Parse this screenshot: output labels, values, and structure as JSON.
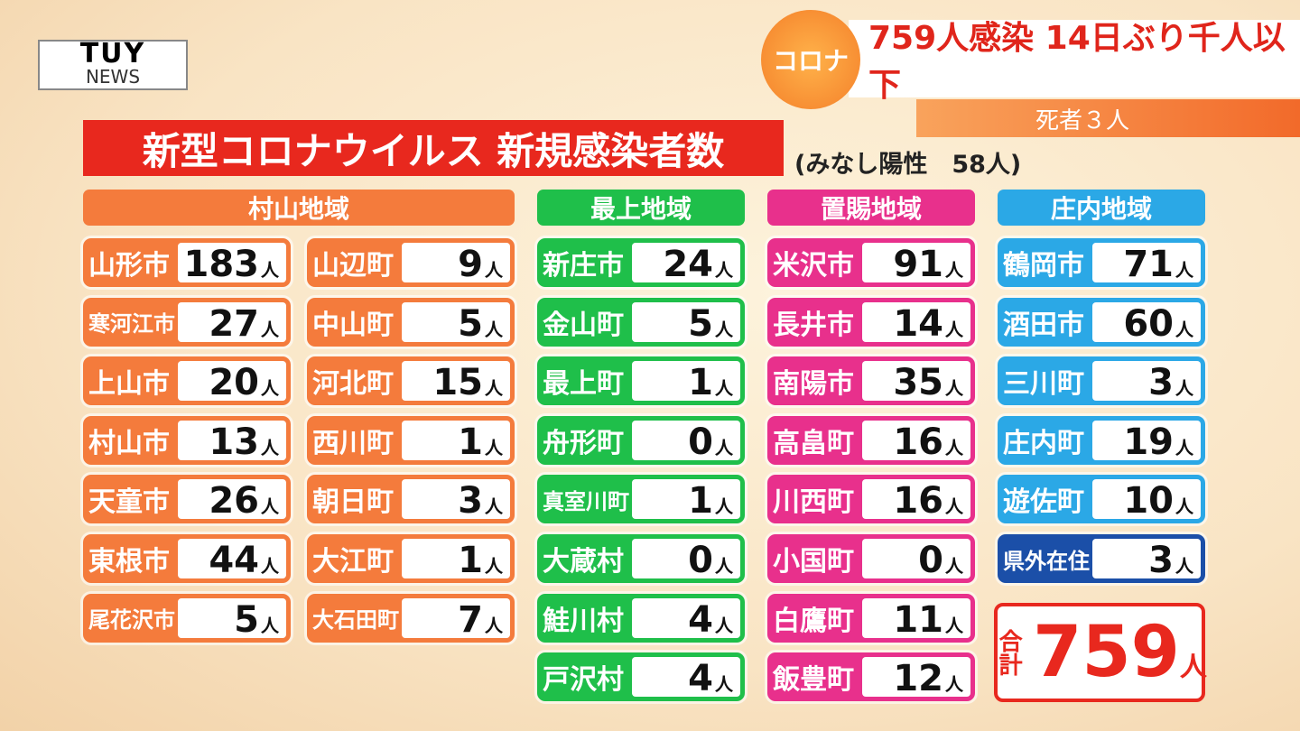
{
  "logo": {
    "main": "TUY",
    "sub": "NEWS"
  },
  "headline": {
    "tag": "コロナ",
    "text": "759人感染 14日ぶり千人以下",
    "sub": "死者３人"
  },
  "title": "新型コロナウイルス 新規感染者数",
  "note": "(みなし陽性　58人)",
  "unit": "人",
  "regions": [
    {
      "name": "村山地域",
      "color": "#f47b3c",
      "columns": [
        [
          {
            "name": "山形市",
            "count": 183
          },
          {
            "name": "寒河江市",
            "count": 27
          },
          {
            "name": "上山市",
            "count": 20
          },
          {
            "name": "村山市",
            "count": 13
          },
          {
            "name": "天童市",
            "count": 26
          },
          {
            "name": "東根市",
            "count": 44
          },
          {
            "name": "尾花沢市",
            "count": 5
          }
        ],
        [
          {
            "name": "山辺町",
            "count": 9
          },
          {
            "name": "中山町",
            "count": 5
          },
          {
            "name": "河北町",
            "count": 15
          },
          {
            "name": "西川町",
            "count": 1
          },
          {
            "name": "朝日町",
            "count": 3
          },
          {
            "name": "大江町",
            "count": 1
          },
          {
            "name": "大石田町",
            "count": 7
          }
        ]
      ]
    },
    {
      "name": "最上地域",
      "color": "#1fbf4a",
      "columns": [
        [
          {
            "name": "新庄市",
            "count": 24
          },
          {
            "name": "金山町",
            "count": 5
          },
          {
            "name": "最上町",
            "count": 1
          },
          {
            "name": "舟形町",
            "count": 0
          },
          {
            "name": "真室川町",
            "count": 1
          },
          {
            "name": "大蔵村",
            "count": 0
          },
          {
            "name": "鮭川村",
            "count": 4
          },
          {
            "name": "戸沢村",
            "count": 4
          }
        ]
      ]
    },
    {
      "name": "置賜地域",
      "color": "#e8308c",
      "columns": [
        [
          {
            "name": "米沢市",
            "count": 91
          },
          {
            "name": "長井市",
            "count": 14
          },
          {
            "name": "南陽市",
            "count": 35
          },
          {
            "name": "高畠町",
            "count": 16
          },
          {
            "name": "川西町",
            "count": 16
          },
          {
            "name": "小国町",
            "count": 0
          },
          {
            "name": "白鷹町",
            "count": 11
          },
          {
            "name": "飯豊町",
            "count": 12
          }
        ]
      ]
    },
    {
      "name": "庄内地域",
      "color": "#2ba8e6",
      "columns": [
        [
          {
            "name": "鶴岡市",
            "count": 71
          },
          {
            "name": "酒田市",
            "count": 60
          },
          {
            "name": "三川町",
            "count": 3
          },
          {
            "name": "庄内町",
            "count": 19
          },
          {
            "name": "遊佐町",
            "count": 10
          },
          {
            "name": "県外在住",
            "count": 3,
            "color": "#1b4fa8"
          }
        ]
      ]
    }
  ],
  "total": {
    "label": "合計",
    "count": 759
  }
}
